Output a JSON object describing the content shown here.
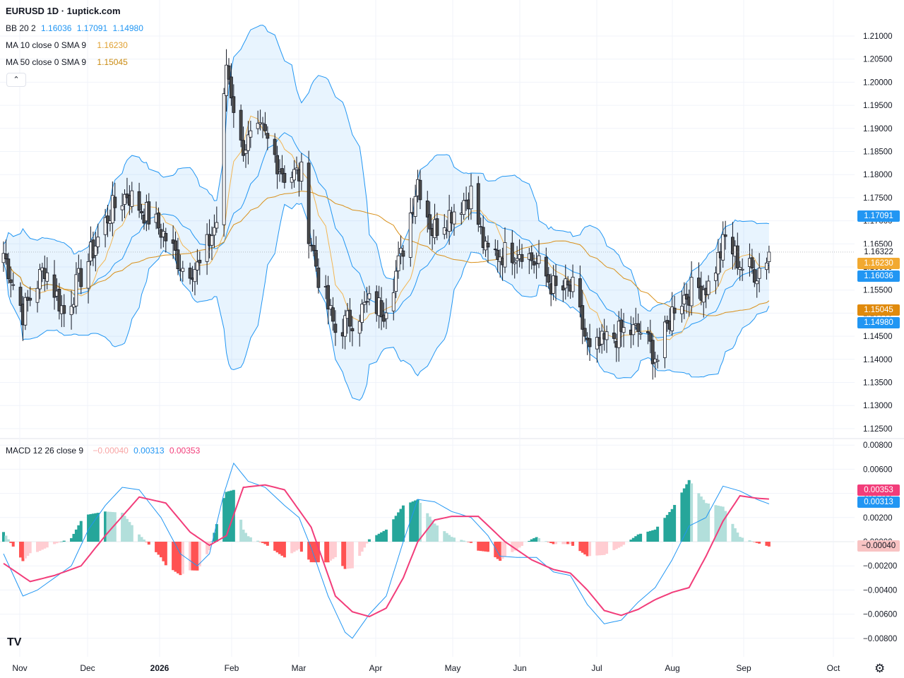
{
  "header": {
    "title": "EURUSD 1D · 1uptick.com"
  },
  "legends": {
    "bb": {
      "label": "BB 20 2",
      "v1": "1.16036",
      "v2": "1.17091",
      "v3": "1.14980",
      "color": "#2962ff"
    },
    "ma10": {
      "label": "MA 10 close 0 SMA 9",
      "value": "1.16230",
      "color": "#e0a030"
    },
    "ma50": {
      "label": "MA 50 close 0 SMA 9",
      "value": "1.15045",
      "color": "#c98a10"
    },
    "macd": {
      "label": "MACD 12 26 close 9",
      "hist": "−0.00040",
      "macd": "0.00313",
      "signal": "0.00353"
    }
  },
  "price_labels": [
    {
      "name": "bb-upper",
      "text": "1.17091",
      "color": "#2196f3"
    },
    {
      "name": "last-close",
      "text": "1.16322",
      "color": "#ffffff"
    },
    {
      "name": "ma10",
      "text": "1.16230",
      "color": "#f2a930"
    },
    {
      "name": "bb-basis",
      "text": "1.16036",
      "color": "#2196f3"
    },
    {
      "name": "ma50",
      "text": "1.15045",
      "color": "#e08a0c"
    },
    {
      "name": "bb-lower",
      "text": "1.14980",
      "color": "#2196f3"
    },
    {
      "name": "macd-signal",
      "text": "0.00353",
      "color": "#f23d7a"
    },
    {
      "name": "macd-line",
      "text": "0.00313",
      "color": "#2196f3"
    },
    {
      "name": "macd-hist",
      "text": "−0.00040",
      "color": "#f8c3c3"
    }
  ],
  "icons": {
    "logo": "tradingview-logo-icon",
    "settings": "gear-icon",
    "collapse": "chevron-up-icon"
  },
  "chart_data": [
    {
      "type": "candlestick",
      "title": "EURUSD 1D",
      "price_axis": [
        "1.21000",
        "1.20500",
        "1.20000",
        "1.19500",
        "1.19000",
        "1.18500",
        "1.18000",
        "1.17500",
        "1.17000",
        "1.16500",
        "1.16000",
        "1.15500",
        "1.15000",
        "1.14500",
        "1.14000",
        "1.13500",
        "1.13000",
        "1.12500"
      ],
      "ylim": [
        1.1225,
        1.2135
      ],
      "time_axis": [
        "Nov",
        "Dec",
        "2026",
        "Feb",
        "Mar",
        "Apr",
        "May",
        "Jun",
        "Jul",
        "Aug",
        "Sep",
        "Oct"
      ],
      "close_anchors": [
        [
          "Oct 27",
          1.163
        ],
        [
          "Nov 4",
          1.15
        ],
        [
          "Nov 13",
          1.16
        ],
        [
          "Nov 21",
          1.15
        ],
        [
          "Nov 28",
          1.158
        ],
        [
          "Dec 10",
          1.172
        ],
        [
          "Dec 17",
          1.176
        ],
        [
          "Dec 31",
          1.168
        ],
        [
          "Jan 9",
          1.16
        ],
        [
          "Jan 16",
          1.16
        ],
        [
          "Jan 23",
          1.17
        ],
        [
          "Jan 27",
          1.204
        ],
        [
          "Feb 2",
          1.186
        ],
        [
          "Feb 11",
          1.189
        ],
        [
          "Feb 20",
          1.18
        ],
        [
          "Feb 27",
          1.18
        ],
        [
          "Mar 2",
          1.168
        ],
        [
          "Mar 6",
          1.158
        ],
        [
          "Mar 13",
          1.146
        ],
        [
          "Mar 20",
          1.149
        ],
        [
          "Mar 27",
          1.152
        ],
        [
          "Apr 2",
          1.151
        ],
        [
          "Apr 9",
          1.162
        ],
        [
          "Apr 16",
          1.179
        ],
        [
          "Apr 22",
          1.168
        ],
        [
          "Apr 30",
          1.172
        ],
        [
          "May 8",
          1.176
        ],
        [
          "May 14",
          1.163
        ],
        [
          "May 22",
          1.163
        ],
        [
          "May 29",
          1.164
        ],
        [
          "Jun 5",
          1.16
        ],
        [
          "Jun 12",
          1.155
        ],
        [
          "Jun 19",
          1.155
        ],
        [
          "Jun 26",
          1.141
        ],
        [
          "Jul 3",
          1.144
        ],
        [
          "Jul 10",
          1.146
        ],
        [
          "Jul 17",
          1.146
        ],
        [
          "Jul 24",
          1.14
        ],
        [
          "Jul 31",
          1.152
        ],
        [
          "Aug 7",
          1.155
        ],
        [
          "Aug 14",
          1.156
        ],
        [
          "Aug 21",
          1.166
        ],
        [
          "Aug 28",
          1.16
        ],
        [
          "Sep 3",
          1.159
        ],
        [
          "Sep 8",
          1.1632
        ]
      ],
      "last_close": 1.16322,
      "bollinger": {
        "length": 20,
        "mult": 2,
        "basis": 1.16036,
        "upper": 1.17091,
        "lower": 1.1498
      },
      "ma10": 1.1623,
      "ma50": 1.15045
    },
    {
      "type": "macd",
      "title": "MACD 12 26 close 9",
      "axis": [
        "0.00800",
        "0.00600",
        "0.00400",
        "0.00200",
        "0.00000",
        "−0.00200",
        "−0.00400",
        "−0.00600",
        "−0.00800"
      ],
      "ylim": [
        -0.0085,
        0.0084
      ],
      "macd_anchors": [
        [
          "Oct 27",
          -0.001
        ],
        [
          "Nov 4",
          -0.0045
        ],
        [
          "Nov 10",
          -0.004
        ],
        [
          "Nov 17",
          -0.003
        ],
        [
          "Nov 24",
          -0.002
        ],
        [
          "Dec 1",
          0.001
        ],
        [
          "Dec 8",
          0.003
        ],
        [
          "Dec 15",
          0.0045
        ],
        [
          "Dec 22",
          0.0043
        ],
        [
          "Dec 31",
          0.002
        ],
        [
          "Jan 8",
          -0.001
        ],
        [
          "Jan 15",
          -0.002
        ],
        [
          "Jan 20",
          -0.001
        ],
        [
          "Jan 26",
          0.004
        ],
        [
          "Jan 30",
          0.0065
        ],
        [
          "Feb 5",
          0.005
        ],
        [
          "Feb 12",
          0.0045
        ],
        [
          "Feb 20",
          0.003
        ],
        [
          "Feb 26",
          0.002
        ],
        [
          "Mar 3",
          -0.0005
        ],
        [
          "Mar 10",
          -0.0045
        ],
        [
          "Mar 17",
          -0.0075
        ],
        [
          "Mar 20",
          -0.008
        ],
        [
          "Mar 27",
          -0.006
        ],
        [
          "Apr 3",
          -0.0045
        ],
        [
          "Apr 10",
          0.0
        ],
        [
          "Apr 16",
          0.0035
        ],
        [
          "Apr 23",
          0.0033
        ],
        [
          "Apr 30",
          0.0025
        ],
        [
          "May 8",
          0.002
        ],
        [
          "May 15",
          0.0005
        ],
        [
          "May 20",
          -0.0012
        ],
        [
          "May 27",
          -0.0013
        ],
        [
          "Jun 4",
          -0.0013
        ],
        [
          "Jun 11",
          -0.0025
        ],
        [
          "Jun 18",
          -0.0028
        ],
        [
          "Jun 25",
          -0.0052
        ],
        [
          "Jul 2",
          -0.0068
        ],
        [
          "Jul 9",
          -0.0065
        ],
        [
          "Jul 16",
          -0.005
        ],
        [
          "Jul 23",
          -0.0038
        ],
        [
          "Jul 30",
          -0.0015
        ],
        [
          "Aug 6",
          0.0013
        ],
        [
          "Aug 13",
          0.002
        ],
        [
          "Aug 20",
          0.0046
        ],
        [
          "Aug 27",
          0.0042
        ],
        [
          "Sep 3",
          0.0035
        ],
        [
          "Sep 8",
          0.00313
        ]
      ],
      "signal_anchors": [
        [
          "Oct 27",
          -0.0018
        ],
        [
          "Nov 7",
          -0.0033
        ],
        [
          "Nov 17",
          -0.0028
        ],
        [
          "Nov 28",
          -0.002
        ],
        [
          "Dec 8",
          0.0005
        ],
        [
          "Dec 22",
          0.0037
        ],
        [
          "Jan 2",
          0.0032
        ],
        [
          "Jan 12",
          0.0008
        ],
        [
          "Jan 20",
          -0.0003
        ],
        [
          "Jan 27",
          0.0005
        ],
        [
          "Feb 3",
          0.0045
        ],
        [
          "Feb 12",
          0.0047
        ],
        [
          "Feb 20",
          0.0043
        ],
        [
          "Mar 3",
          0.0012
        ],
        [
          "Mar 13",
          -0.0045
        ],
        [
          "Mar 20",
          -0.0058
        ],
        [
          "Mar 27",
          -0.0062
        ],
        [
          "Apr 3",
          -0.0055
        ],
        [
          "Apr 10",
          -0.003
        ],
        [
          "Apr 16",
          0.0
        ],
        [
          "Apr 23",
          0.0018
        ],
        [
          "Apr 30",
          0.0021
        ],
        [
          "May 11",
          0.0021
        ],
        [
          "May 22",
          0.0
        ],
        [
          "Jun 2",
          -0.0015
        ],
        [
          "Jun 11",
          -0.0023
        ],
        [
          "Jun 18",
          -0.0026
        ],
        [
          "Jun 25",
          -0.004
        ],
        [
          "Jul 2",
          -0.0057
        ],
        [
          "Jul 9",
          -0.0061
        ],
        [
          "Jul 16",
          -0.0056
        ],
        [
          "Jul 23",
          -0.0048
        ],
        [
          "Jul 30",
          -0.0042
        ],
        [
          "Aug 6",
          -0.0038
        ],
        [
          "Aug 13",
          -0.0012
        ],
        [
          "Aug 20",
          0.0017
        ],
        [
          "Aug 27",
          0.0038
        ],
        [
          "Sep 3",
          0.0036
        ],
        [
          "Sep 8",
          0.00353
        ]
      ],
      "last_histogram": -0.0004,
      "colors": {
        "macd": "#2196f3",
        "signal": "#f23d7a",
        "hist_up_strong": "#26a69a",
        "hist_up_weak": "#b2dfdb",
        "hist_down_strong": "#ff5252",
        "hist_down_weak": "#ffcdd2"
      }
    }
  ]
}
